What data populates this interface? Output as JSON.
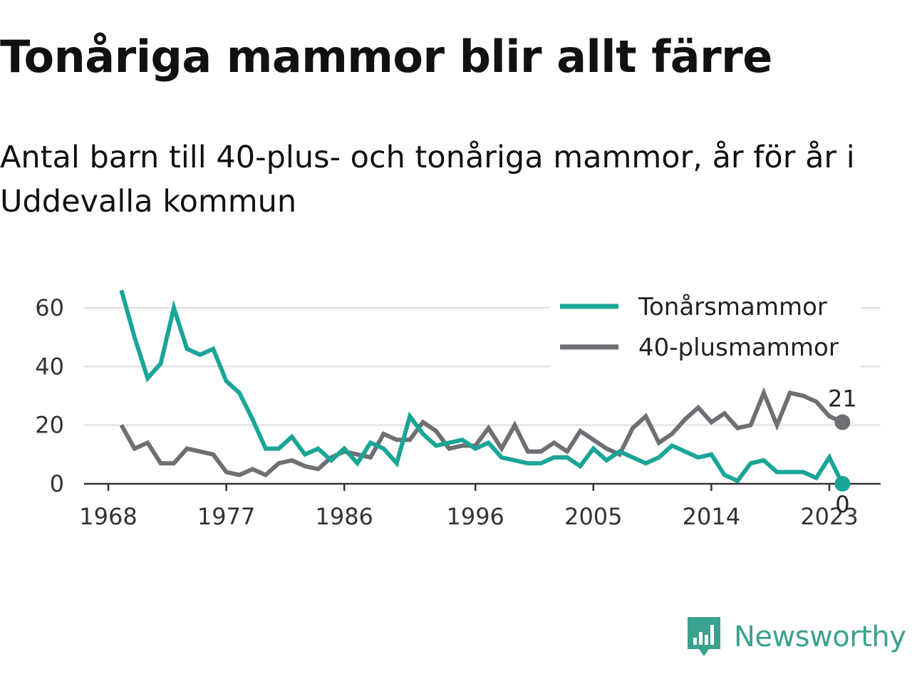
{
  "title": "Tonåriga mammor blir allt färre",
  "subtitle": "Antal barn till 40-plus- och tonåriga mammor, år för år i Uddevalla kommun",
  "brand": {
    "name": "Newsworthy",
    "icon": "newsworthy-logo-icon",
    "color": "#3aa28f"
  },
  "chart_data": {
    "type": "line",
    "x": [
      1969,
      1970,
      1971,
      1972,
      1973,
      1974,
      1975,
      1976,
      1977,
      1978,
      1979,
      1980,
      1981,
      1982,
      1983,
      1984,
      1985,
      1986,
      1987,
      1988,
      1989,
      1990,
      1991,
      1992,
      1993,
      1994,
      1995,
      1996,
      1997,
      1998,
      1999,
      2000,
      2001,
      2002,
      2003,
      2004,
      2005,
      2006,
      2007,
      2008,
      2009,
      2010,
      2011,
      2012,
      2013,
      2014,
      2015,
      2016,
      2017,
      2018,
      2019,
      2020,
      2021,
      2022,
      2023,
      2024
    ],
    "series": [
      {
        "name": "Tonårsmammor",
        "color": "#1aa596",
        "values": [
          66,
          50,
          36,
          41,
          60,
          46,
          44,
          46,
          35,
          31,
          22,
          12,
          12,
          16,
          10,
          12,
          8,
          12,
          7,
          14,
          12,
          7,
          23,
          17,
          13,
          14,
          15,
          12,
          14,
          9,
          8,
          7,
          7,
          9,
          9,
          6,
          12,
          8,
          11,
          9,
          7,
          9,
          13,
          11,
          9,
          10,
          3,
          1,
          7,
          8,
          4,
          4,
          4,
          2,
          9,
          0
        ]
      },
      {
        "name": "40-plusmammor",
        "color": "#6e6e73",
        "values": [
          20,
          12,
          14,
          7,
          7,
          12,
          11,
          10,
          4,
          3,
          5,
          3,
          7,
          8,
          6,
          5,
          9,
          11,
          10,
          9,
          17,
          15,
          15,
          21,
          18,
          12,
          13,
          13,
          19,
          12,
          20,
          11,
          11,
          14,
          11,
          18,
          15,
          12,
          10,
          19,
          23,
          14,
          17,
          22,
          26,
          21,
          24,
          19,
          20,
          31,
          20,
          31,
          30,
          28,
          23,
          21
        ]
      }
    ],
    "end_labels": [
      {
        "series": "40-plusmammor",
        "value": "21"
      },
      {
        "series": "Tonårsmammor",
        "value": "0"
      }
    ],
    "xticks": [
      1968,
      1977,
      1986,
      1996,
      2005,
      2014,
      2023
    ],
    "yticks": [
      0,
      20,
      40,
      60
    ],
    "xlim": [
      1968,
      2025
    ],
    "ylim": [
      0,
      66
    ],
    "grid": true,
    "legend": "top-right"
  }
}
